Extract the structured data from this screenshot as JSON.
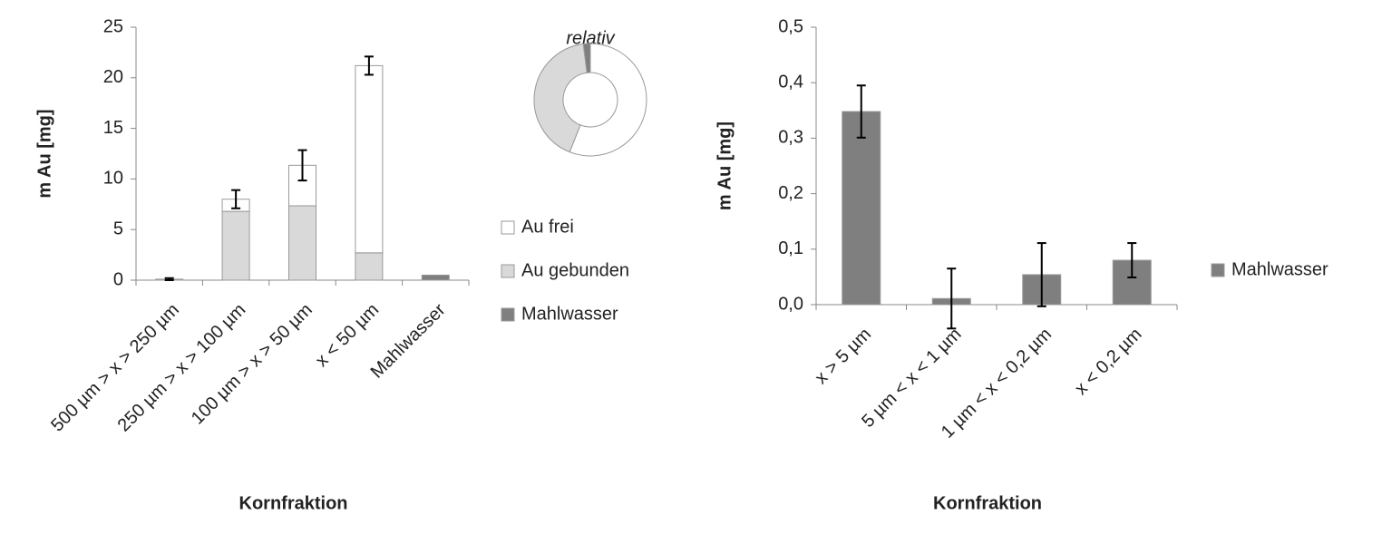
{
  "chart_data": [
    {
      "type": "bar",
      "stacked": true,
      "ylabel": "m Au [mg]",
      "xlabel": "Kornfraktion",
      "categories": [
        "500 µm > x > 250 µm",
        "250 µm > x > 100 µm",
        "100 µm > x > 50 µm",
        "x < 50 µm",
        "Mahlwasser"
      ],
      "series": [
        {
          "name": "Au gebunden",
          "color": "#d9d9d9",
          "values": [
            0.1,
            6.8,
            7.35,
            2.7,
            null
          ]
        },
        {
          "name": "Au frei",
          "color": "#ffffff",
          "values": [
            null,
            1.2,
            4.0,
            18.5,
            null
          ]
        },
        {
          "name": "Mahlwasser",
          "color": "#7f7f7f",
          "values": [
            null,
            null,
            null,
            null,
            0.5
          ]
        }
      ],
      "errors": [
        0.1,
        0.9,
        1.5,
        0.9,
        null
      ],
      "legend_order": [
        1,
        0,
        2
      ],
      "ylim": [
        0,
        25
      ],
      "yticks": [
        0,
        5,
        10,
        15,
        20,
        25
      ]
    },
    {
      "type": "donut",
      "title": "relativ",
      "values": [
        56,
        42,
        2
      ],
      "colors": [
        "#ffffff",
        "#d9d9d9",
        "#7f7f7f"
      ]
    },
    {
      "type": "bar",
      "ylabel": "m Au [mg]",
      "xlabel": "Kornfraktion",
      "categories": [
        "x > 5 µm",
        "5 µm < x < 1 µm",
        "1 µm < x < 0,2 µm",
        "x < 0,2 µm"
      ],
      "series": [
        {
          "name": "Mahlwasser",
          "color": "#7f7f7f",
          "values": [
            0.348,
            0.011,
            0.054,
            0.08
          ]
        }
      ],
      "errors": [
        0.047,
        0.054,
        0.057,
        0.031
      ],
      "ylim": [
        0,
        0.5
      ],
      "yticks": [
        {
          "value": 0,
          "label": "0,0"
        },
        {
          "value": 0.1,
          "label": "0,1"
        },
        {
          "value": 0.2,
          "label": "0,2"
        },
        {
          "value": 0.3,
          "label": "0,3"
        },
        {
          "value": 0.4,
          "label": "0,4"
        },
        {
          "value": 0.5,
          "label": "0,5"
        }
      ]
    }
  ]
}
